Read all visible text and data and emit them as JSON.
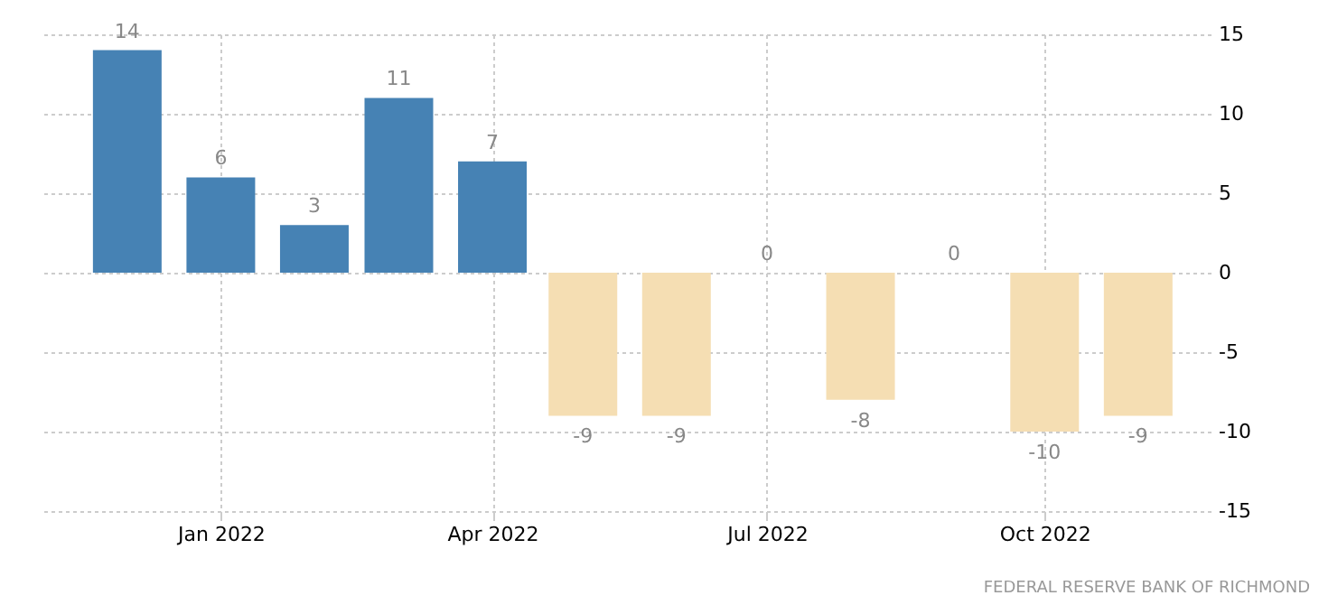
{
  "chart_data": {
    "type": "bar",
    "x": [
      "2021-12-01",
      "2022-01-01",
      "2022-02-01",
      "2022-03-01",
      "2022-04-01",
      "2022-05-01",
      "2022-06-01",
      "2022-07-01",
      "2022-08-01",
      "2022-09-01",
      "2022-10-01",
      "2022-11-01"
    ],
    "values": [
      14,
      6,
      3,
      11,
      7,
      -9,
      -9,
      0,
      -8,
      0,
      -10,
      -9
    ],
    "colors": [
      "#4682b4",
      "#4682b4",
      "#4682b4",
      "#4682b4",
      "#4682b4",
      "#f5deb3",
      "#f5deb3",
      "#f5deb3",
      "#f5deb3",
      "#f5deb3",
      "#f5deb3",
      "#f5deb3"
    ],
    "data_labels": true,
    "xlim": [
      "2021-11-02",
      "2022-11-25"
    ],
    "xticks": [
      {
        "value": "2022-01-01",
        "label": "Jan 2022"
      },
      {
        "value": "2022-04-01",
        "label": "Apr 2022"
      },
      {
        "value": "2022-07-01",
        "label": "Jul 2022"
      },
      {
        "value": "2022-10-01",
        "label": "Oct 2022"
      }
    ],
    "ylim": [
      -15,
      15
    ],
    "yticks": [
      -15,
      -10,
      -5,
      0,
      5,
      10,
      15
    ],
    "grid": true,
    "annotations": [
      "FEDERAL RESERVE BANK OF RICHMOND"
    ]
  }
}
